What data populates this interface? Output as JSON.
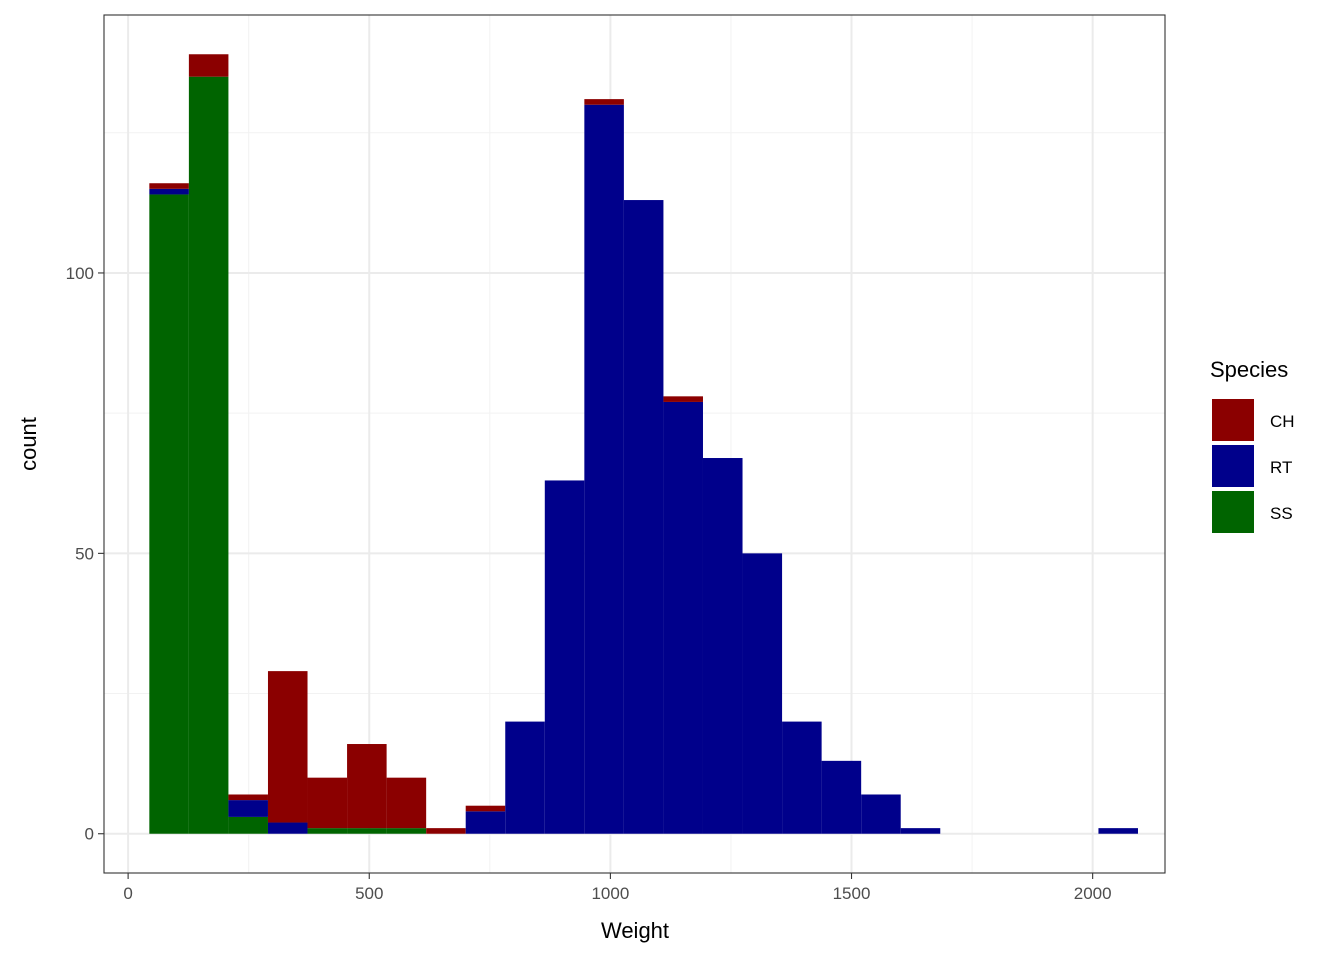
{
  "chart_data": {
    "type": "bar",
    "stacked": true,
    "xlabel": "Weight",
    "ylabel": "count",
    "xlim": [
      -50,
      2150
    ],
    "ylim": [
      -7,
      146
    ],
    "x_ticks": [
      0,
      500,
      1000,
      1500,
      2000
    ],
    "x_tick_labels": [
      "0",
      "500",
      "1000",
      "1500",
      "2000"
    ],
    "y_ticks": [
      0,
      50,
      100
    ],
    "y_tick_labels": [
      "0",
      "50",
      "100"
    ],
    "grid": true,
    "bin_edges": [
      44,
      126,
      208,
      290,
      372,
      454,
      536,
      618,
      700,
      782,
      864,
      946,
      1028,
      1110,
      1192,
      1274,
      1356,
      1438,
      1520,
      1602,
      1684,
      1766,
      1848,
      1930,
      2012,
      2094
    ],
    "stack_order": [
      "SS",
      "RT",
      "CH"
    ],
    "series": [
      {
        "name": "CH",
        "color": "#8B0000",
        "values": [
          1,
          4,
          1,
          27,
          9,
          15,
          9,
          1,
          1,
          0,
          0,
          1,
          0,
          1,
          0,
          0,
          0,
          0,
          0,
          0,
          0,
          0,
          0,
          0,
          0
        ]
      },
      {
        "name": "RT",
        "color": "#00008B",
        "values": [
          1,
          0,
          3,
          2,
          0,
          0,
          0,
          0,
          4,
          20,
          63,
          130,
          113,
          77,
          67,
          50,
          20,
          13,
          7,
          1,
          0,
          0,
          0,
          0,
          1
        ]
      },
      {
        "name": "SS",
        "color": "#006400",
        "values": [
          114,
          135,
          3,
          0,
          1,
          1,
          1,
          0,
          0,
          0,
          0,
          0,
          0,
          0,
          0,
          0,
          0,
          0,
          0,
          0,
          0,
          0,
          0,
          0,
          0
        ]
      }
    ],
    "legend": {
      "title": "Species",
      "position": "right",
      "items": [
        {
          "label": "CH",
          "color": "#8B0000"
        },
        {
          "label": "RT",
          "color": "#00008B"
        },
        {
          "label": "SS",
          "color": "#006400"
        }
      ]
    }
  }
}
